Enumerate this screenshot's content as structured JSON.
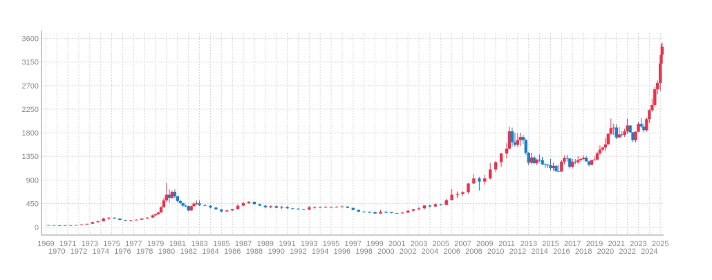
{
  "chart_data": {
    "type": "candlestick",
    "title": "",
    "xlabel": "",
    "ylabel": "",
    "ylim": [
      -150,
      3700
    ],
    "xlim": [
      1968.6,
      2025.3
    ],
    "grid": true,
    "colors": {
      "up": "#e8344e",
      "down": "#1f7fc4",
      "grid": "#d6d6d6",
      "tick_text": "#8a8a8a"
    },
    "y_ticks": [
      0,
      450,
      900,
      1350,
      1800,
      2250,
      2700,
      3150,
      3600
    ],
    "y_tick_labels": [
      "0",
      "450",
      "900",
      "1350",
      "1800",
      "2250",
      "2700",
      "3150",
      "3600"
    ],
    "x_ticks": [
      1969,
      1970,
      1971,
      1972,
      1973,
      1974,
      1975,
      1976,
      1977,
      1978,
      1979,
      1980,
      1981,
      1982,
      1983,
      1984,
      1985,
      1986,
      1987,
      1988,
      1989,
      1990,
      1991,
      1992,
      1993,
      1994,
      1995,
      1996,
      1997,
      1998,
      1999,
      2000,
      2001,
      2002,
      2003,
      2004,
      2005,
      2006,
      2007,
      2008,
      2009,
      2010,
      2011,
      2012,
      2013,
      2014,
      2015,
      2016,
      2017,
      2018,
      2019,
      2020,
      2021,
      2022,
      2023,
      2024,
      2025
    ],
    "x_tick_labels": [
      "1969",
      "1970",
      "1971",
      "1972",
      "1973",
      "1974",
      "1975",
      "1976",
      "1977",
      "1978",
      "1979",
      "1980",
      "1981",
      "1982",
      "1983",
      "1984",
      "1985",
      "1986",
      "1987",
      "1988",
      "1989",
      "1990",
      "1991",
      "1992",
      "1993",
      "1994",
      "1995",
      "1996",
      "1997",
      "1998",
      "1999",
      "2000",
      "2001",
      "2002",
      "2003",
      "2004",
      "2005",
      "2006",
      "2007",
      "2008",
      "2009",
      "2010",
      "2011",
      "2012",
      "2013",
      "2014",
      "2015",
      "2016",
      "2017",
      "2018",
      "2019",
      "2020",
      "2021",
      "2022",
      "2023",
      "2024",
      "2025"
    ],
    "candles": [
      {
        "t": 1969.25,
        "o": 43,
        "h": 44,
        "l": 40,
        "c": 41
      },
      {
        "t": 1969.75,
        "o": 41,
        "h": 42,
        "l": 35,
        "c": 36
      },
      {
        "t": 1970.25,
        "o": 36,
        "h": 37,
        "l": 34,
        "c": 35
      },
      {
        "t": 1970.75,
        "o": 35,
        "h": 38,
        "l": 35,
        "c": 37
      },
      {
        "t": 1971.25,
        "o": 37,
        "h": 41,
        "l": 37,
        "c": 40
      },
      {
        "t": 1971.75,
        "o": 40,
        "h": 44,
        "l": 39,
        "c": 43
      },
      {
        "t": 1972.25,
        "o": 44,
        "h": 55,
        "l": 44,
        "c": 53
      },
      {
        "t": 1972.75,
        "o": 53,
        "h": 67,
        "l": 52,
        "c": 64
      },
      {
        "t": 1973.25,
        "o": 65,
        "h": 105,
        "l": 64,
        "c": 95
      },
      {
        "t": 1973.75,
        "o": 95,
        "h": 127,
        "l": 90,
        "c": 112
      },
      {
        "t": 1974.25,
        "o": 112,
        "h": 180,
        "l": 112,
        "c": 165
      },
      {
        "t": 1974.75,
        "o": 165,
        "h": 197,
        "l": 140,
        "c": 183
      },
      {
        "t": 1975.25,
        "o": 183,
        "h": 186,
        "l": 160,
        "c": 165
      },
      {
        "t": 1975.75,
        "o": 165,
        "h": 170,
        "l": 128,
        "c": 140
      },
      {
        "t": 1976.25,
        "o": 140,
        "h": 142,
        "l": 118,
        "c": 125
      },
      {
        "t": 1976.75,
        "o": 125,
        "h": 140,
        "l": 103,
        "c": 134
      },
      {
        "t": 1977.25,
        "o": 134,
        "h": 150,
        "l": 130,
        "c": 143
      },
      {
        "t": 1977.75,
        "o": 143,
        "h": 168,
        "l": 140,
        "c": 165
      },
      {
        "t": 1978.25,
        "o": 165,
        "h": 190,
        "l": 160,
        "c": 183
      },
      {
        "t": 1978.75,
        "o": 183,
        "h": 245,
        "l": 180,
        "c": 226
      },
      {
        "t": 1979.0,
        "o": 226,
        "h": 260,
        "l": 215,
        "c": 245
      },
      {
        "t": 1979.25,
        "o": 245,
        "h": 300,
        "l": 240,
        "c": 280
      },
      {
        "t": 1979.5,
        "o": 280,
        "h": 400,
        "l": 275,
        "c": 380
      },
      {
        "t": 1979.75,
        "o": 380,
        "h": 560,
        "l": 370,
        "c": 512
      },
      {
        "t": 1980.0,
        "o": 512,
        "h": 850,
        "l": 480,
        "c": 620
      },
      {
        "t": 1980.25,
        "o": 620,
        "h": 720,
        "l": 470,
        "c": 560
      },
      {
        "t": 1980.5,
        "o": 560,
        "h": 700,
        "l": 540,
        "c": 670
      },
      {
        "t": 1980.75,
        "o": 670,
        "h": 720,
        "l": 560,
        "c": 590
      },
      {
        "t": 1981.0,
        "o": 590,
        "h": 600,
        "l": 480,
        "c": 500
      },
      {
        "t": 1981.25,
        "o": 500,
        "h": 520,
        "l": 440,
        "c": 460
      },
      {
        "t": 1981.5,
        "o": 460,
        "h": 470,
        "l": 390,
        "c": 410
      },
      {
        "t": 1981.75,
        "o": 410,
        "h": 430,
        "l": 380,
        "c": 400
      },
      {
        "t": 1982.0,
        "o": 400,
        "h": 410,
        "l": 300,
        "c": 320
      },
      {
        "t": 1982.25,
        "o": 320,
        "h": 420,
        "l": 310,
        "c": 400
      },
      {
        "t": 1982.5,
        "o": 400,
        "h": 480,
        "l": 390,
        "c": 450
      },
      {
        "t": 1982.75,
        "o": 450,
        "h": 510,
        "l": 420,
        "c": 455
      },
      {
        "t": 1983.0,
        "o": 455,
        "h": 510,
        "l": 400,
        "c": 420
      },
      {
        "t": 1983.5,
        "o": 420,
        "h": 440,
        "l": 400,
        "c": 410
      },
      {
        "t": 1984.0,
        "o": 410,
        "h": 420,
        "l": 360,
        "c": 375
      },
      {
        "t": 1984.5,
        "o": 375,
        "h": 390,
        "l": 330,
        "c": 340
      },
      {
        "t": 1985.0,
        "o": 340,
        "h": 345,
        "l": 280,
        "c": 300
      },
      {
        "t": 1985.5,
        "o": 300,
        "h": 335,
        "l": 295,
        "c": 320
      },
      {
        "t": 1986.0,
        "o": 320,
        "h": 350,
        "l": 310,
        "c": 345
      },
      {
        "t": 1986.5,
        "o": 345,
        "h": 440,
        "l": 335,
        "c": 410
      },
      {
        "t": 1987.0,
        "o": 410,
        "h": 480,
        "l": 400,
        "c": 460
      },
      {
        "t": 1987.5,
        "o": 460,
        "h": 500,
        "l": 440,
        "c": 485
      },
      {
        "t": 1988.0,
        "o": 485,
        "h": 490,
        "l": 430,
        "c": 440
      },
      {
        "t": 1988.5,
        "o": 440,
        "h": 450,
        "l": 400,
        "c": 410
      },
      {
        "t": 1989.0,
        "o": 410,
        "h": 420,
        "l": 360,
        "c": 380
      },
      {
        "t": 1989.5,
        "o": 380,
        "h": 420,
        "l": 360,
        "c": 400
      },
      {
        "t": 1990.0,
        "o": 400,
        "h": 420,
        "l": 360,
        "c": 370
      },
      {
        "t": 1990.5,
        "o": 370,
        "h": 410,
        "l": 350,
        "c": 385
      },
      {
        "t": 1991.0,
        "o": 385,
        "h": 400,
        "l": 350,
        "c": 360
      },
      {
        "t": 1991.5,
        "o": 360,
        "h": 370,
        "l": 345,
        "c": 355
      },
      {
        "t": 1992.0,
        "o": 355,
        "h": 360,
        "l": 335,
        "c": 340
      },
      {
        "t": 1992.5,
        "o": 340,
        "h": 345,
        "l": 330,
        "c": 335
      },
      {
        "t": 1993.0,
        "o": 335,
        "h": 405,
        "l": 325,
        "c": 380
      },
      {
        "t": 1993.5,
        "o": 380,
        "h": 400,
        "l": 355,
        "c": 385
      },
      {
        "t": 1994.0,
        "o": 385,
        "h": 395,
        "l": 370,
        "c": 380
      },
      {
        "t": 1994.5,
        "o": 380,
        "h": 400,
        "l": 375,
        "c": 385
      },
      {
        "t": 1995.0,
        "o": 385,
        "h": 395,
        "l": 375,
        "c": 385
      },
      {
        "t": 1995.5,
        "o": 385,
        "h": 400,
        "l": 380,
        "c": 388
      },
      {
        "t": 1996.0,
        "o": 388,
        "h": 415,
        "l": 380,
        "c": 395
      },
      {
        "t": 1996.5,
        "o": 395,
        "h": 398,
        "l": 365,
        "c": 370
      },
      {
        "t": 1997.0,
        "o": 370,
        "h": 370,
        "l": 320,
        "c": 330
      },
      {
        "t": 1997.5,
        "o": 330,
        "h": 335,
        "l": 285,
        "c": 295
      },
      {
        "t": 1998.0,
        "o": 295,
        "h": 310,
        "l": 285,
        "c": 290
      },
      {
        "t": 1998.5,
        "o": 290,
        "h": 300,
        "l": 275,
        "c": 288
      },
      {
        "t": 1999.0,
        "o": 288,
        "h": 290,
        "l": 255,
        "c": 260
      },
      {
        "t": 1999.5,
        "o": 260,
        "h": 330,
        "l": 250,
        "c": 290
      },
      {
        "t": 2000.0,
        "o": 290,
        "h": 315,
        "l": 270,
        "c": 285
      },
      {
        "t": 2000.5,
        "o": 285,
        "h": 290,
        "l": 265,
        "c": 272
      },
      {
        "t": 2001.0,
        "o": 272,
        "h": 275,
        "l": 255,
        "c": 265
      },
      {
        "t": 2001.5,
        "o": 265,
        "h": 295,
        "l": 260,
        "c": 278
      },
      {
        "t": 2002.0,
        "o": 278,
        "h": 330,
        "l": 275,
        "c": 315
      },
      {
        "t": 2002.5,
        "o": 315,
        "h": 350,
        "l": 300,
        "c": 342
      },
      {
        "t": 2003.0,
        "o": 342,
        "h": 385,
        "l": 320,
        "c": 360
      },
      {
        "t": 2003.5,
        "o": 360,
        "h": 420,
        "l": 340,
        "c": 415
      },
      {
        "t": 2004.0,
        "o": 415,
        "h": 430,
        "l": 375,
        "c": 395
      },
      {
        "t": 2004.5,
        "o": 395,
        "h": 455,
        "l": 385,
        "c": 438
      },
      {
        "t": 2005.0,
        "o": 438,
        "h": 440,
        "l": 410,
        "c": 425
      },
      {
        "t": 2005.5,
        "o": 425,
        "h": 540,
        "l": 420,
        "c": 515
      },
      {
        "t": 2006.0,
        "o": 515,
        "h": 730,
        "l": 510,
        "c": 620
      },
      {
        "t": 2006.5,
        "o": 620,
        "h": 680,
        "l": 560,
        "c": 632
      },
      {
        "t": 2007.0,
        "o": 632,
        "h": 690,
        "l": 600,
        "c": 665
      },
      {
        "t": 2007.5,
        "o": 665,
        "h": 840,
        "l": 640,
        "c": 833
      },
      {
        "t": 2008.0,
        "o": 833,
        "h": 1010,
        "l": 830,
        "c": 930
      },
      {
        "t": 2008.5,
        "o": 930,
        "h": 960,
        "l": 700,
        "c": 870
      },
      {
        "t": 2009.0,
        "o": 870,
        "h": 1000,
        "l": 810,
        "c": 930
      },
      {
        "t": 2009.5,
        "o": 930,
        "h": 1220,
        "l": 910,
        "c": 1100
      },
      {
        "t": 2010.0,
        "o": 1100,
        "h": 1260,
        "l": 1050,
        "c": 1240
      },
      {
        "t": 2010.5,
        "o": 1240,
        "h": 1420,
        "l": 1150,
        "c": 1405
      },
      {
        "t": 2011.0,
        "o": 1405,
        "h": 1600,
        "l": 1310,
        "c": 1500
      },
      {
        "t": 2011.25,
        "o": 1500,
        "h": 1920,
        "l": 1480,
        "c": 1830
      },
      {
        "t": 2011.5,
        "o": 1830,
        "h": 1900,
        "l": 1540,
        "c": 1620
      },
      {
        "t": 2011.75,
        "o": 1620,
        "h": 1800,
        "l": 1530,
        "c": 1570
      },
      {
        "t": 2012.0,
        "o": 1570,
        "h": 1790,
        "l": 1530,
        "c": 1660
      },
      {
        "t": 2012.25,
        "o": 1660,
        "h": 1800,
        "l": 1550,
        "c": 1720
      },
      {
        "t": 2012.5,
        "o": 1720,
        "h": 1760,
        "l": 1580,
        "c": 1660
      },
      {
        "t": 2012.75,
        "o": 1660,
        "h": 1690,
        "l": 1380,
        "c": 1420
      },
      {
        "t": 2013.0,
        "o": 1420,
        "h": 1430,
        "l": 1180,
        "c": 1230
      },
      {
        "t": 2013.25,
        "o": 1230,
        "h": 1420,
        "l": 1200,
        "c": 1330
      },
      {
        "t": 2013.5,
        "o": 1330,
        "h": 1360,
        "l": 1200,
        "c": 1220
      },
      {
        "t": 2013.75,
        "o": 1220,
        "h": 1310,
        "l": 1180,
        "c": 1290
      },
      {
        "t": 2014.0,
        "o": 1290,
        "h": 1390,
        "l": 1240,
        "c": 1280
      },
      {
        "t": 2014.25,
        "o": 1280,
        "h": 1340,
        "l": 1180,
        "c": 1200
      },
      {
        "t": 2014.5,
        "o": 1200,
        "h": 1230,
        "l": 1130,
        "c": 1190
      },
      {
        "t": 2014.75,
        "o": 1190,
        "h": 1210,
        "l": 1130,
        "c": 1180
      },
      {
        "t": 2015.0,
        "o": 1180,
        "h": 1300,
        "l": 1080,
        "c": 1130
      },
      {
        "t": 2015.25,
        "o": 1130,
        "h": 1230,
        "l": 1080,
        "c": 1170
      },
      {
        "t": 2015.5,
        "o": 1170,
        "h": 1190,
        "l": 1050,
        "c": 1070
      },
      {
        "t": 2015.75,
        "o": 1070,
        "h": 1190,
        "l": 1050,
        "c": 1060
      },
      {
        "t": 2016.0,
        "o": 1060,
        "h": 1280,
        "l": 1060,
        "c": 1250
      },
      {
        "t": 2016.25,
        "o": 1250,
        "h": 1370,
        "l": 1200,
        "c": 1320
      },
      {
        "t": 2016.5,
        "o": 1320,
        "h": 1380,
        "l": 1250,
        "c": 1310
      },
      {
        "t": 2016.75,
        "o": 1310,
        "h": 1320,
        "l": 1120,
        "c": 1150
      },
      {
        "t": 2017.0,
        "o": 1150,
        "h": 1300,
        "l": 1120,
        "c": 1250
      },
      {
        "t": 2017.25,
        "o": 1250,
        "h": 1300,
        "l": 1200,
        "c": 1240
      },
      {
        "t": 2017.5,
        "o": 1240,
        "h": 1360,
        "l": 1210,
        "c": 1280
      },
      {
        "t": 2017.75,
        "o": 1280,
        "h": 1330,
        "l": 1240,
        "c": 1300
      },
      {
        "t": 2018.0,
        "o": 1300,
        "h": 1370,
        "l": 1280,
        "c": 1325
      },
      {
        "t": 2018.25,
        "o": 1325,
        "h": 1360,
        "l": 1250,
        "c": 1255
      },
      {
        "t": 2018.5,
        "o": 1255,
        "h": 1270,
        "l": 1160,
        "c": 1190
      },
      {
        "t": 2018.75,
        "o": 1190,
        "h": 1290,
        "l": 1180,
        "c": 1280
      },
      {
        "t": 2019.0,
        "o": 1280,
        "h": 1350,
        "l": 1270,
        "c": 1290
      },
      {
        "t": 2019.25,
        "o": 1290,
        "h": 1440,
        "l": 1270,
        "c": 1410
      },
      {
        "t": 2019.5,
        "o": 1410,
        "h": 1560,
        "l": 1380,
        "c": 1480
      },
      {
        "t": 2019.75,
        "o": 1480,
        "h": 1530,
        "l": 1450,
        "c": 1520
      },
      {
        "t": 2020.0,
        "o": 1520,
        "h": 1700,
        "l": 1450,
        "c": 1580
      },
      {
        "t": 2020.25,
        "o": 1580,
        "h": 1790,
        "l": 1570,
        "c": 1780
      },
      {
        "t": 2020.5,
        "o": 1780,
        "h": 2070,
        "l": 1760,
        "c": 1890
      },
      {
        "t": 2020.75,
        "o": 1890,
        "h": 1970,
        "l": 1760,
        "c": 1900
      },
      {
        "t": 2021.0,
        "o": 1900,
        "h": 1960,
        "l": 1680,
        "c": 1710
      },
      {
        "t": 2021.25,
        "o": 1710,
        "h": 1910,
        "l": 1700,
        "c": 1770
      },
      {
        "t": 2021.5,
        "o": 1770,
        "h": 1830,
        "l": 1720,
        "c": 1760
      },
      {
        "t": 2021.75,
        "o": 1760,
        "h": 1880,
        "l": 1720,
        "c": 1830
      },
      {
        "t": 2022.0,
        "o": 1830,
        "h": 2070,
        "l": 1780,
        "c": 1940
      },
      {
        "t": 2022.25,
        "o": 1940,
        "h": 1950,
        "l": 1800,
        "c": 1810
      },
      {
        "t": 2022.5,
        "o": 1810,
        "h": 1810,
        "l": 1620,
        "c": 1660
      },
      {
        "t": 2022.75,
        "o": 1660,
        "h": 1830,
        "l": 1620,
        "c": 1820
      },
      {
        "t": 2023.0,
        "o": 1820,
        "h": 2010,
        "l": 1810,
        "c": 1970
      },
      {
        "t": 2023.25,
        "o": 1970,
        "h": 2080,
        "l": 1890,
        "c": 1920
      },
      {
        "t": 2023.5,
        "o": 1920,
        "h": 1980,
        "l": 1810,
        "c": 1850
      },
      {
        "t": 2023.75,
        "o": 1850,
        "h": 2090,
        "l": 1820,
        "c": 2060
      },
      {
        "t": 2024.0,
        "o": 2060,
        "h": 2250,
        "l": 1990,
        "c": 2230
      },
      {
        "t": 2024.25,
        "o": 2230,
        "h": 2450,
        "l": 2200,
        "c": 2330
      },
      {
        "t": 2024.5,
        "o": 2330,
        "h": 2680,
        "l": 2290,
        "c": 2630
      },
      {
        "t": 2024.75,
        "o": 2630,
        "h": 2800,
        "l": 2540,
        "c": 2750
      },
      {
        "t": 2025.0,
        "o": 2750,
        "h": 3150,
        "l": 2600,
        "c": 3120
      },
      {
        "t": 2025.08,
        "o": 3120,
        "h": 3500,
        "l": 2950,
        "c": 3290
      },
      {
        "t": 2025.17,
        "o": 3290,
        "h": 3520,
        "l": 3300,
        "c": 3440
      }
    ]
  }
}
